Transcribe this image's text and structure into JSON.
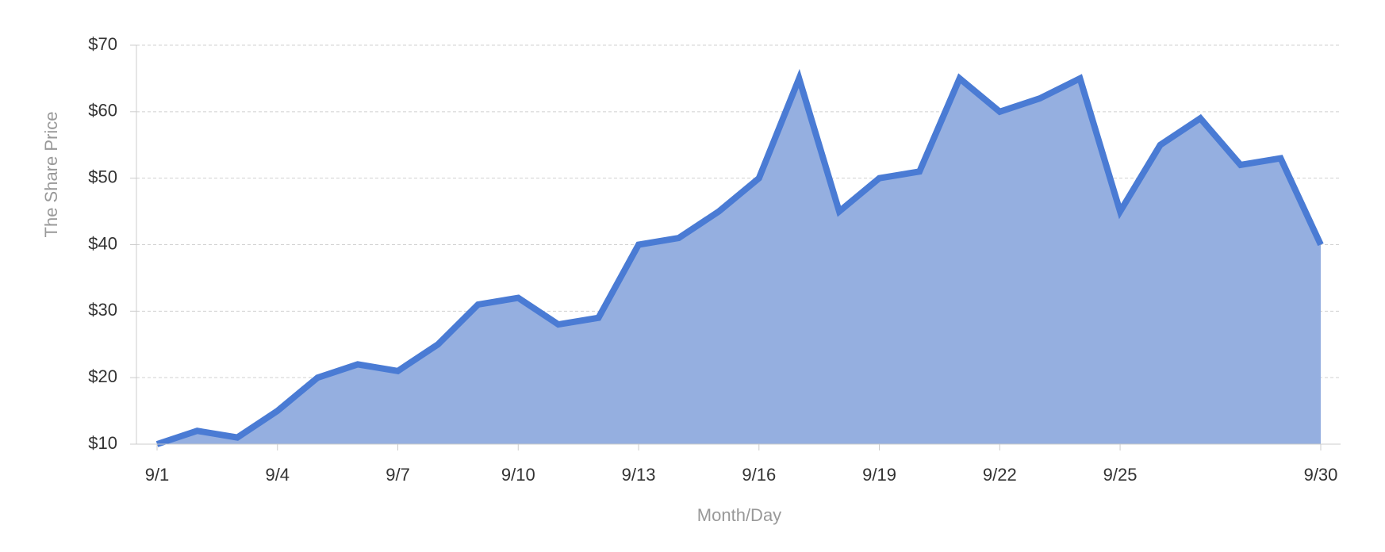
{
  "chart_data": {
    "type": "area",
    "x_label": "Month/Day",
    "y_label": "The Share Price",
    "categories": [
      "9/1",
      null,
      null,
      "9/4",
      null,
      null,
      "9/7",
      null,
      null,
      "9/10",
      null,
      null,
      "9/13",
      null,
      null,
      "9/16",
      null,
      null,
      "9/19",
      null,
      null,
      "9/22",
      null,
      null,
      "9/25",
      null,
      null,
      null,
      null,
      "9/30"
    ],
    "values": [
      10,
      12,
      11,
      15,
      20,
      22,
      21,
      25,
      31,
      32,
      28,
      29,
      40,
      41,
      45,
      50,
      65,
      45,
      50,
      51,
      65,
      60,
      62,
      65,
      45,
      55,
      59,
      52,
      53,
      40
    ],
    "color": "#4a7bd4",
    "fill_color": "#95afe0",
    "ylim": [
      10,
      70
    ],
    "yticks": [
      {
        "value": 10,
        "label": "$10"
      },
      {
        "value": 20,
        "label": "$20"
      },
      {
        "value": 30,
        "label": "$30"
      },
      {
        "value": 40,
        "label": "$40"
      },
      {
        "value": 50,
        "label": "$50"
      },
      {
        "value": 60,
        "label": "$60"
      },
      {
        "value": 70,
        "label": "$70"
      }
    ],
    "grid": true
  }
}
